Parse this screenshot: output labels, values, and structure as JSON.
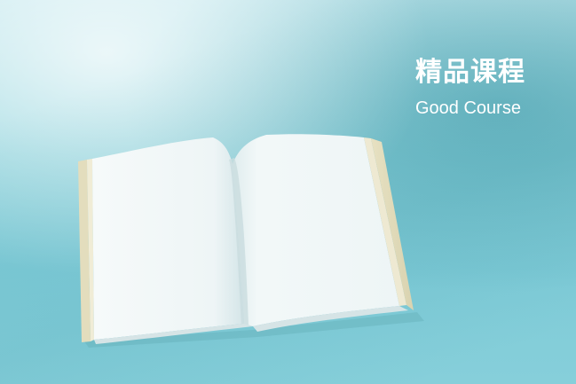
{
  "banner": {
    "title_cn": "精品课程",
    "title_en": "Good Course"
  },
  "illustration": {
    "subject": "open-book-icon"
  },
  "colors": {
    "background": "#8fd3dc",
    "text": "#ffffff",
    "page": "#f4f8f8",
    "cover_edge": "#e9e3c4"
  }
}
